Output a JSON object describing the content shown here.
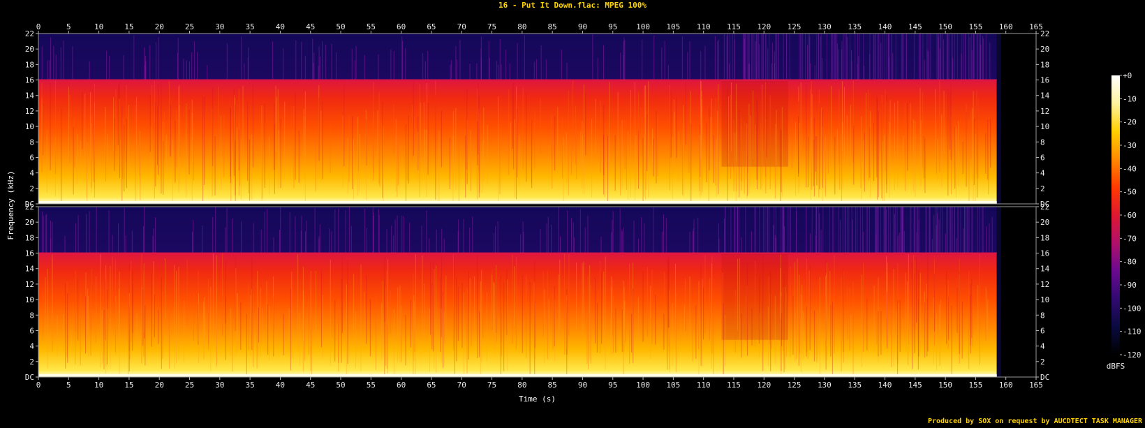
{
  "title": "16 - Put It Down.flac: MPEG 100%",
  "credit": "Produced by SOX on request by AUCDTECT TASK MANAGER",
  "chart_data": {
    "type": "heatmap",
    "title": "16 - Put It Down.flac: MPEG 100%",
    "xlabel": "Time (s)",
    "ylabel": "Frequency (kHz)",
    "xlim": [
      0,
      165
    ],
    "x_ticks": [
      "0",
      "5",
      "10",
      "15",
      "20",
      "25",
      "30",
      "35",
      "40",
      "45",
      "50",
      "55",
      "60",
      "65",
      "70",
      "75",
      "80",
      "85",
      "90",
      "95",
      "100",
      "105",
      "110",
      "115",
      "120",
      "125",
      "130",
      "135",
      "140",
      "145",
      "150",
      "155",
      "160",
      "165"
    ],
    "ylim": [
      0,
      22
    ],
    "y_ticks": [
      "DC",
      "2",
      "4",
      "6",
      "8",
      "10",
      "12",
      "14",
      "16",
      "18",
      "20",
      "22"
    ],
    "channels": 2,
    "duration_s": 158.5,
    "lowpass_cutoff_khz": 16,
    "colorbar": {
      "label": "dBFS",
      "ticks": [
        "+0",
        "-10",
        "-20",
        "-30",
        "-40",
        "-50",
        "-60",
        "-70",
        "-80",
        "-90",
        "-100",
        "-110",
        "-120"
      ],
      "range": [
        -120,
        0
      ],
      "colors": [
        "#000000",
        "#0a0a40",
        "#300a70",
        "#6a0a90",
        "#b0106a",
        "#e01830",
        "#ff3a00",
        "#ff8a00",
        "#ffd000",
        "#fff4a0",
        "#ffffff"
      ]
    },
    "grid": false
  }
}
